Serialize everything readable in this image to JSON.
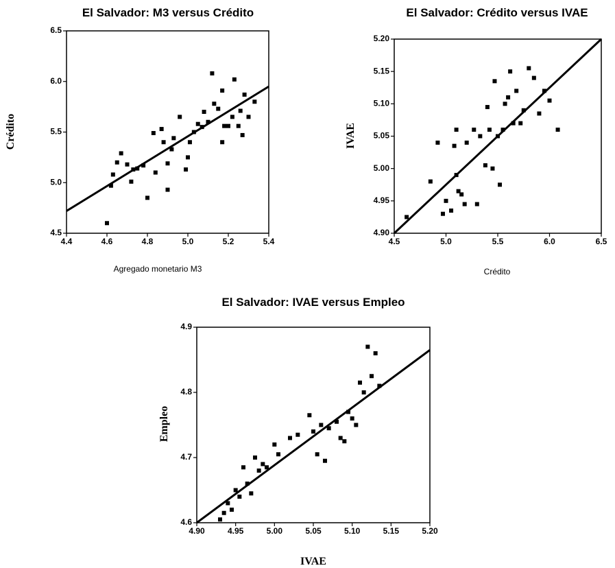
{
  "chart_data": [
    {
      "type": "scatter",
      "title": "El Salvador: M3 versus Crédito",
      "x_label": "Agregado monetario M3",
      "y_label": "Crédito",
      "xlim": [
        4.4,
        5.4
      ],
      "ylim": [
        4.5,
        6.5
      ],
      "xticks": [
        4.4,
        4.6,
        4.8,
        {
          "value": 5,
          "label": "5.0"
        },
        5.2,
        5.4
      ],
      "yticks": [
        4.5,
        {
          "value": 5,
          "label": "5.0"
        },
        5.5,
        {
          "value": 6,
          "label": "6.0"
        },
        6.5
      ],
      "color": "#000000",
      "points": {
        "x": [
          4.6,
          4.62,
          4.63,
          4.65,
          4.67,
          4.7,
          4.72,
          4.73,
          4.75,
          4.78,
          4.8,
          4.83,
          4.84,
          4.87,
          4.88,
          4.9,
          4.9,
          4.92,
          4.93,
          4.96,
          4.99,
          5.0,
          5.01,
          5.03,
          5.05,
          5.07,
          5.08,
          5.1,
          5.12,
          5.13,
          5.15,
          5.17,
          5.17,
          5.18,
          5.2,
          5.22,
          5.23,
          5.25,
          5.26,
          5.27,
          5.28,
          5.3,
          5.33
        ],
        "values": [
          4.6,
          4.97,
          5.08,
          5.2,
          5.29,
          5.18,
          5.01,
          5.13,
          5.14,
          5.17,
          4.85,
          5.49,
          5.1,
          5.53,
          5.4,
          5.19,
          4.93,
          5.33,
          5.44,
          5.65,
          5.13,
          5.25,
          5.4,
          5.5,
          5.58,
          5.55,
          5.7,
          5.6,
          6.08,
          5.78,
          5.73,
          5.4,
          5.91,
          5.56,
          5.56,
          5.65,
          6.02,
          5.56,
          5.71,
          5.47,
          5.87,
          5.65,
          5.8
        ]
      },
      "fit": {
        "x": [
          4.4,
          5.4
        ],
        "values": [
          4.72,
          5.95
        ]
      }
    },
    {
      "type": "scatter",
      "title": "El Salvador: Crédito versus IVAE",
      "x_label": "Crédito",
      "y_label": "IVAE",
      "xlim": [
        4.5,
        6.5
      ],
      "ylim": [
        4.9,
        5.2
      ],
      "xticks": [
        4.5,
        {
          "value": 5,
          "label": "5.0"
        },
        5.5,
        {
          "value": 6,
          "label": "6.0"
        },
        6.5
      ],
      "yticks": [
        {
          "value": 4.9,
          "label": "4.90"
        },
        4.95,
        {
          "value": 5,
          "label": "5.00"
        },
        5.05,
        {
          "value": 5.1,
          "label": "5.10"
        },
        5.15,
        {
          "value": 5.2,
          "label": "5.20"
        }
      ],
      "color": "#000000",
      "points": {
        "x": [
          4.62,
          4.85,
          4.92,
          4.97,
          5.0,
          5.05,
          5.08,
          5.1,
          5.1,
          5.12,
          5.15,
          5.18,
          5.2,
          5.27,
          5.3,
          5.33,
          5.38,
          5.4,
          5.42,
          5.45,
          5.47,
          5.5,
          5.52,
          5.55,
          5.57,
          5.6,
          5.62,
          5.65,
          5.68,
          5.72,
          5.75,
          5.8,
          5.85,
          5.9,
          5.95,
          6.0,
          6.08
        ],
        "values": [
          4.925,
          4.98,
          5.04,
          4.93,
          4.95,
          4.935,
          5.035,
          5.06,
          4.99,
          4.965,
          4.96,
          4.945,
          5.04,
          5.06,
          4.945,
          5.05,
          5.005,
          5.095,
          5.06,
          5.0,
          5.135,
          5.05,
          4.975,
          5.06,
          5.1,
          5.11,
          5.15,
          5.07,
          5.12,
          5.07,
          5.09,
          5.155,
          5.14,
          5.085,
          5.12,
          5.105,
          5.06
        ]
      },
      "fit": {
        "x": [
          4.5,
          6.5
        ],
        "values": [
          4.9,
          5.2
        ]
      }
    },
    {
      "type": "scatter",
      "title": "El Salvador: IVAE versus Empleo",
      "x_label": "IVAE",
      "y_label": "Empleo",
      "xlim": [
        4.9,
        5.2
      ],
      "ylim": [
        4.6,
        4.9
      ],
      "xticks": [
        {
          "value": 4.9,
          "label": "4.90"
        },
        4.95,
        {
          "value": 5,
          "label": "5.00"
        },
        5.05,
        {
          "value": 5.1,
          "label": "5.10"
        },
        5.15,
        {
          "value": 5.2,
          "label": "5.20"
        }
      ],
      "yticks": [
        4.6,
        4.7,
        4.8,
        4.9
      ],
      "color": "#000000",
      "points": {
        "x": [
          4.93,
          4.935,
          4.94,
          4.945,
          4.95,
          4.955,
          4.96,
          4.965,
          4.97,
          4.975,
          4.98,
          4.985,
          4.99,
          5.0,
          5.005,
          5.02,
          5.03,
          5.045,
          5.05,
          5.055,
          5.06,
          5.065,
          5.07,
          5.08,
          5.085,
          5.09,
          5.095,
          5.1,
          5.105,
          5.11,
          5.115,
          5.12,
          5.125,
          5.13,
          5.135
        ],
        "values": [
          4.605,
          4.615,
          4.63,
          4.62,
          4.65,
          4.64,
          4.685,
          4.66,
          4.645,
          4.7,
          4.68,
          4.69,
          4.685,
          4.72,
          4.705,
          4.73,
          4.735,
          4.765,
          4.74,
          4.705,
          4.75,
          4.695,
          4.745,
          4.755,
          4.73,
          4.725,
          4.77,
          4.76,
          4.75,
          4.815,
          4.8,
          4.87,
          4.825,
          4.86,
          4.81
        ]
      },
      "fit": {
        "x": [
          4.9,
          5.2
        ],
        "values": [
          4.6,
          4.865
        ]
      }
    }
  ]
}
